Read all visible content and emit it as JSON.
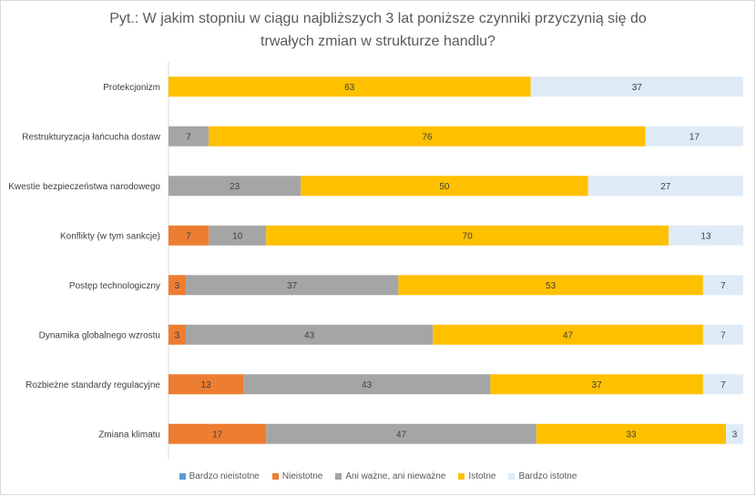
{
  "chart_data": {
    "type": "bar",
    "orientation": "horizontal",
    "stacked": "percent",
    "title": "Pyt.: W jakim stopniu w ciągu najbliższych 3 lat poniższe czynniki przyczynią się do trwałych zmian w strukturze handlu?",
    "categories": [
      "Protekcjonizm",
      "Restrukturyzacja łańcucha dostaw",
      "Kwestie bezpieczeństwa narodowego",
      "Konflikty (w tym sankcje)",
      "Postęp technologiczny",
      "Dynamika globalnego wzrostu",
      "Rozbieżne standardy regulacyjne",
      "Zmiana klimatu"
    ],
    "series": [
      {
        "name": "Bardzo nieistotne",
        "color": "#5b9bd5",
        "values": [
          0,
          0,
          0,
          0,
          0,
          0,
          0,
          0
        ]
      },
      {
        "name": "Nieistotne",
        "color": "#ed7d31",
        "values": [
          0,
          0,
          0,
          7,
          3,
          3,
          13,
          17
        ]
      },
      {
        "name": "Ani ważne, ani nieważne",
        "color": "#a5a5a5",
        "values": [
          0,
          7,
          23,
          10,
          37,
          43,
          43,
          47
        ]
      },
      {
        "name": "Istotne",
        "color": "#ffc000",
        "values": [
          63,
          76,
          50,
          70,
          53,
          47,
          37,
          33
        ]
      },
      {
        "name": "Bardzo istotne",
        "color": "#deebf7",
        "values": [
          37,
          17,
          27,
          13,
          7,
          7,
          7,
          3
        ]
      }
    ],
    "xlim": [
      0,
      100
    ],
    "legend": "bottom",
    "grid": false
  }
}
